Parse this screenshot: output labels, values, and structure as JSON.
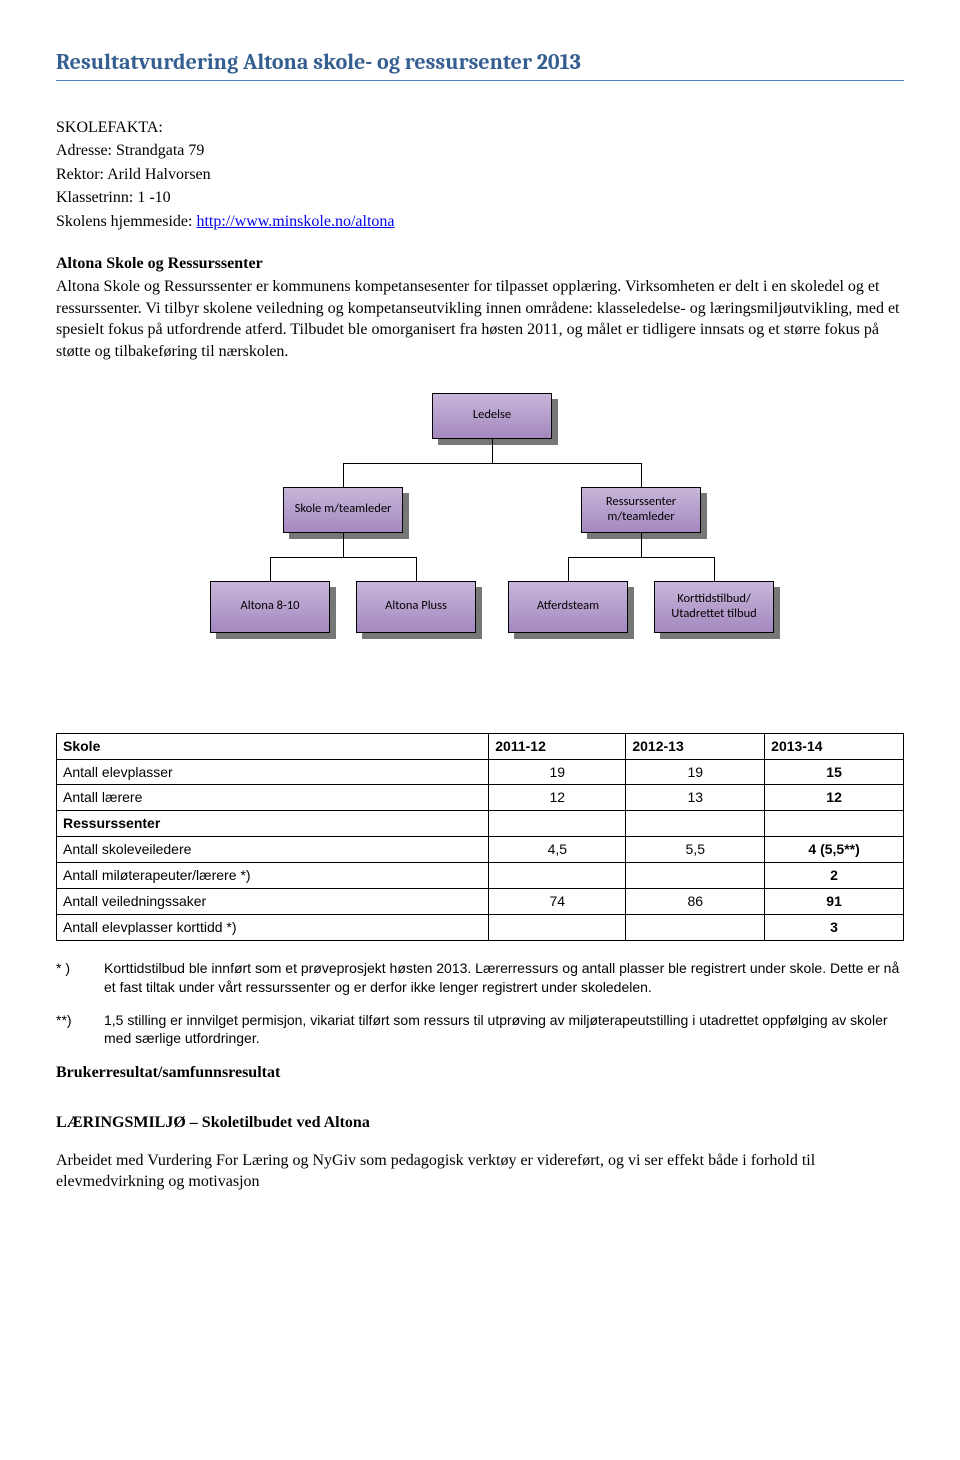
{
  "title": "Resultatvurdering Altona skole- og ressursenter 2013",
  "facts": {
    "heading": "SKOLEFAKTA:",
    "lines": [
      "Adresse: Strandgata 79",
      "Rektor: Arild Halvorsen",
      "Klassetrinn: 1 -10"
    ],
    "homepage_prefix": "Skolens hjemmeside: ",
    "homepage_link": "http://www.minskole.no/altona"
  },
  "intro": {
    "heading": "Altona Skole og Ressurssenter",
    "body": "Altona Skole og Ressurssenter er kommunens kompetansesenter for tilpasset opplæring. Virksomheten er delt i en skoledel og et ressurssenter. Vi tilbyr skolene veiledning og kompetanseutvikling innen områdene: klasseledelse- og læringsmiljøutvikling, med et spesielt fokus på utfordrende atferd. Tilbudet ble omorganisert fra høsten 2011, og målet er tidligere innsats og et større fokus på støtte og tilbakeføring til nærskolen."
  },
  "org": {
    "root": "Ledelse",
    "level2": [
      "Skole m/teamleder",
      "Ressurssenter m/teamleder"
    ],
    "level3": [
      "Altona 8-10",
      "Altona Pluss",
      "Atferdsteam",
      "Korttidstilbud/ Utadrettet tilbud"
    ]
  },
  "table": {
    "headers": [
      "Skole",
      "2011-12",
      "2012-13",
      "2013-14"
    ],
    "rows": [
      [
        "Antall elevplasser",
        "19",
        "19",
        "15"
      ],
      [
        "Antall lærere",
        "12",
        "13",
        "12"
      ],
      [
        "Ressurssenter",
        "",
        "",
        ""
      ],
      [
        "Antall skoleveiledere",
        "4,5",
        "5,5",
        "4 (5,5**)"
      ],
      [
        "Antall miløterapeuter/lærere *)",
        "",
        "",
        "2"
      ],
      [
        "Antall veiledningssaker",
        "74",
        "86",
        "91"
      ],
      [
        "Antall elevplasser korttidd *)",
        "",
        "",
        "3"
      ]
    ],
    "bold_rows": [
      2
    ]
  },
  "footnotes": [
    {
      "mark": "* )",
      "text": "Korttidstilbud ble innført som et prøveprosjekt høsten 2013. Lærerressurs og antall plasser ble registrert under skole. Dette er nå et fast tiltak under vårt ressurssenter og er derfor ikke lenger registrert under skoledelen."
    },
    {
      "mark": "**)",
      "text": "1,5 stilling er innvilget permisjon, vikariat tilført som ressurs til utprøving av miljøterapeutstilling i utadrettet oppfølging av skoler med særlige utfordringer."
    }
  ],
  "sub1": "Brukerresultat/samfunnsresultat",
  "sub2": "LÆRINGSMILJØ – Skoletilbudet ved Altona",
  "closing": "Arbeidet med Vurdering For Læring og NyGiv som pedagogisk verktøy er videreført, og vi ser effekt både i forhold til elevmedvirkning og motivasjon"
}
